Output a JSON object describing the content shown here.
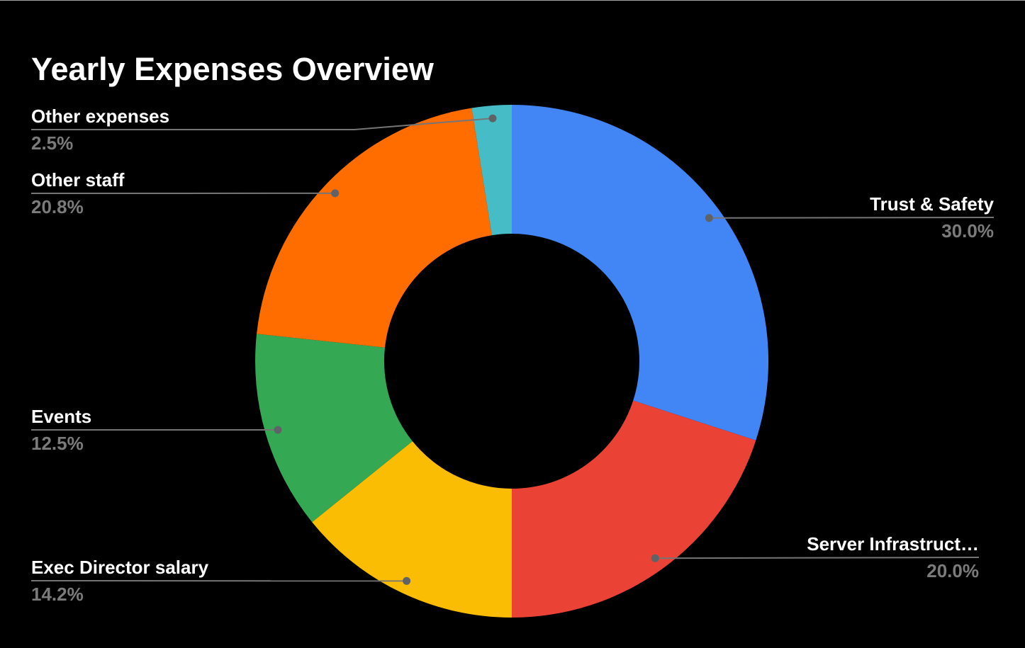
{
  "title": "Yearly Expenses Overview",
  "colors": {
    "background": "#000000",
    "title_text": "#ffffff",
    "label_text": "#ffffff",
    "percent_text": "#7b7b7b",
    "leader_line": "#757575",
    "leader_dot": "#5f6368"
  },
  "chart_data": {
    "type": "pie",
    "subtype": "donut",
    "title": "Yearly Expenses Overview",
    "direction": "clockwise",
    "start_angle_deg": 0,
    "legend_position": "callout-labels",
    "units": "percent",
    "total": 100,
    "slices": [
      {
        "label": "Trust & Safety",
        "value": 30.0,
        "pct_label": "30.0%",
        "color": "#4285F4"
      },
      {
        "label": "Server Infrastruct…",
        "value": 20.0,
        "pct_label": "20.0%",
        "color": "#EA4335"
      },
      {
        "label": "Exec Director salary",
        "value": 14.2,
        "pct_label": "14.2%",
        "color": "#FBBC04"
      },
      {
        "label": "Events",
        "value": 12.5,
        "pct_label": "12.5%",
        "color": "#34A853"
      },
      {
        "label": "Other staff",
        "value": 20.8,
        "pct_label": "20.8%",
        "color": "#FF6D01"
      },
      {
        "label": "Other expenses",
        "value": 2.5,
        "pct_label": "2.5%",
        "color": "#46BDC6"
      }
    ]
  }
}
